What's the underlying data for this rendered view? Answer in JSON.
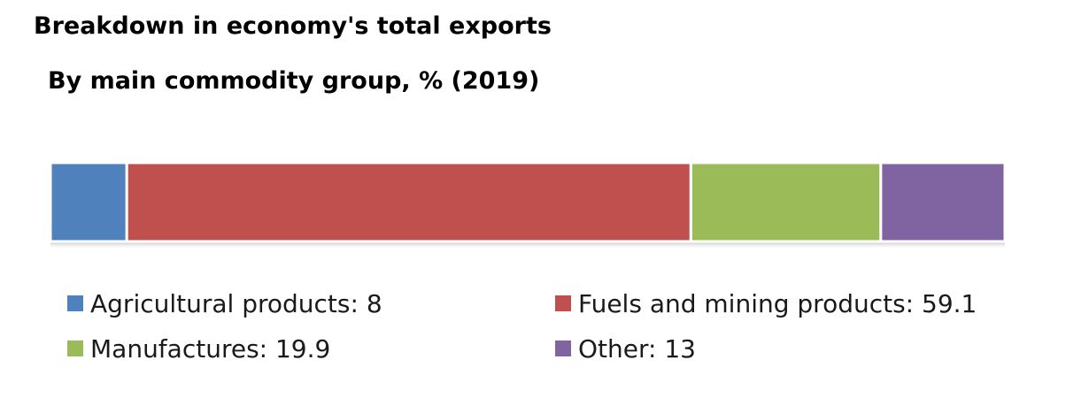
{
  "chart_data": {
    "type": "bar",
    "orientation": "horizontal-stacked",
    "title": "Breakdown in economy's total exports",
    "subtitle": "By main commodity group, % (2019)",
    "series": [
      {
        "name": "Agricultural products",
        "value": 8,
        "label": "Agricultural products: 8",
        "color": "#4f81bd"
      },
      {
        "name": "Fuels and mining products",
        "value": 59.1,
        "label": "Fuels and mining products: 59.1",
        "color": "#c0504d"
      },
      {
        "name": "Manufactures",
        "value": 19.9,
        "label": "Manufactures: 19.9",
        "color": "#9bbb59"
      },
      {
        "name": "Other",
        "value": 13,
        "label": "Other: 13",
        "color": "#8064a2"
      }
    ],
    "total": 100,
    "grid": false,
    "legend_position": "bottom"
  }
}
